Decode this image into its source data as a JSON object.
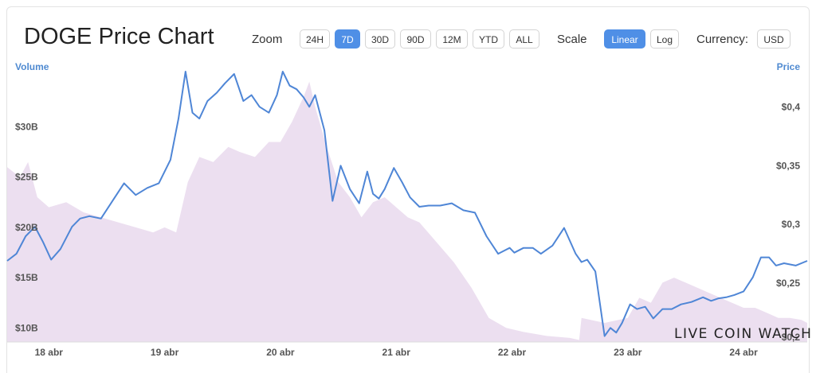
{
  "header": {
    "title": "DOGE Price Chart",
    "zoom_label": "Zoom",
    "zoom_options": [
      "24H",
      "7D",
      "30D",
      "90D",
      "12M",
      "YTD",
      "ALL"
    ],
    "zoom_selected": "7D",
    "scale_label": "Scale",
    "scale_options": [
      "Linear",
      "Log"
    ],
    "scale_selected": "Linear",
    "currency_label": "Currency:",
    "currency_value": "USD"
  },
  "watermark": "LIVE COIN WATCH",
  "colors": {
    "price_line": "#4f86d6",
    "volume_fill": "#ecdff0",
    "accent": "#4f8fe6"
  },
  "chart_data": {
    "type": "line",
    "title": "DOGE Price Chart",
    "x_ticks": [
      "18 abr",
      "19 abr",
      "20 abr",
      "21 abr",
      "22 abr",
      "23 abr",
      "24 abr"
    ],
    "x_range": [
      17.64,
      24.55
    ],
    "left_axis": {
      "title": "Volume",
      "ticks": [
        "$10B",
        "$15B",
        "$20B",
        "$25B",
        "$30B"
      ],
      "tick_values": [
        10,
        15,
        20,
        25,
        30
      ],
      "range": [
        8.6,
        35.5
      ]
    },
    "right_axis": {
      "title": "Price",
      "ticks": [
        "$0,2",
        "$0,25",
        "$0,3",
        "$0,35",
        "$0,4"
      ],
      "tick_values": [
        0.2,
        0.25,
        0.3,
        0.35,
        0.4
      ],
      "range": [
        0.2,
        0.43
      ]
    },
    "series": [
      {
        "name": "Price",
        "type": "line",
        "x": [
          17.64,
          17.72,
          17.8,
          17.88,
          17.95,
          18.02,
          18.1,
          18.2,
          18.27,
          18.35,
          18.45,
          18.55,
          18.65,
          18.75,
          18.85,
          18.95,
          19.05,
          19.12,
          19.18,
          19.24,
          19.3,
          19.37,
          19.45,
          19.52,
          19.6,
          19.68,
          19.75,
          19.82,
          19.9,
          19.97,
          20.02,
          20.08,
          20.14,
          20.2,
          20.25,
          20.3,
          20.38,
          20.45,
          20.52,
          20.6,
          20.68,
          20.75,
          20.8,
          20.85,
          20.9,
          20.98,
          21.05,
          21.12,
          21.2,
          21.28,
          21.38,
          21.48,
          21.58,
          21.68,
          21.78,
          21.88,
          21.98,
          22.02,
          22.1,
          22.18,
          22.25,
          22.35,
          22.45,
          22.55,
          22.6,
          22.65,
          22.72,
          22.8,
          22.85,
          22.9,
          22.95,
          23.02,
          23.08,
          23.15,
          23.22,
          23.3,
          23.38,
          23.46,
          23.55,
          23.65,
          23.72,
          23.78,
          23.85,
          23.92,
          24.0,
          24.08,
          24.15,
          24.22,
          24.28,
          24.35,
          24.45,
          24.55
        ],
        "values": [
          0.269,
          0.275,
          0.29,
          0.298,
          0.285,
          0.27,
          0.279,
          0.298,
          0.305,
          0.307,
          0.305,
          0.32,
          0.335,
          0.325,
          0.331,
          0.335,
          0.355,
          0.39,
          0.43,
          0.395,
          0.39,
          0.405,
          0.412,
          0.42,
          0.428,
          0.405,
          0.41,
          0.4,
          0.395,
          0.41,
          0.43,
          0.418,
          0.415,
          0.408,
          0.4,
          0.41,
          0.38,
          0.32,
          0.35,
          0.33,
          0.318,
          0.345,
          0.326,
          0.322,
          0.33,
          0.348,
          0.336,
          0.323,
          0.315,
          0.316,
          0.316,
          0.318,
          0.312,
          0.31,
          0.29,
          0.275,
          0.28,
          0.276,
          0.28,
          0.28,
          0.275,
          0.282,
          0.297,
          0.275,
          0.268,
          0.27,
          0.26,
          0.205,
          0.212,
          0.208,
          0.216,
          0.232,
          0.228,
          0.23,
          0.22,
          0.228,
          0.228,
          0.232,
          0.234,
          0.238,
          0.235,
          0.237,
          0.238,
          0.24,
          0.243,
          0.255,
          0.272,
          0.272,
          0.265,
          0.267,
          0.265,
          0.269
        ]
      },
      {
        "name": "Volume",
        "type": "area",
        "x": [
          17.64,
          17.75,
          17.82,
          17.9,
          18.0,
          18.15,
          18.3,
          18.45,
          18.6,
          18.75,
          18.9,
          19.0,
          19.1,
          19.2,
          19.3,
          19.42,
          19.55,
          19.65,
          19.78,
          19.9,
          20.0,
          20.1,
          20.2,
          20.25,
          20.3,
          20.4,
          20.5,
          20.6,
          20.7,
          20.8,
          20.9,
          21.0,
          21.1,
          21.2,
          21.35,
          21.5,
          21.65,
          21.8,
          21.95,
          22.1,
          22.3,
          22.5,
          22.58,
          22.6,
          22.8,
          23.0,
          23.1,
          23.2,
          23.3,
          23.4,
          23.5,
          23.6,
          23.7,
          23.8,
          23.9,
          24.0,
          24.1,
          24.2,
          24.3,
          24.4,
          24.5,
          24.55
        ],
        "values": [
          26.0,
          25.0,
          26.5,
          23.0,
          22.0,
          22.5,
          21.5,
          21.0,
          20.5,
          20.0,
          19.5,
          20.0,
          19.5,
          24.5,
          27.0,
          26.5,
          28.0,
          27.5,
          27.0,
          28.5,
          28.5,
          30.5,
          33.0,
          34.5,
          32.0,
          28.0,
          24.5,
          23.0,
          21.0,
          22.5,
          23.0,
          22.0,
          21.0,
          20.5,
          18.5,
          16.5,
          14.0,
          11.0,
          10.0,
          9.6,
          9.2,
          9.0,
          8.8,
          11.0,
          10.5,
          11.0,
          13.0,
          12.5,
          14.5,
          15.0,
          14.5,
          14.0,
          13.5,
          13.0,
          12.5,
          12.0,
          12.0,
          11.5,
          11.0,
          11.0,
          10.8,
          10.5
        ]
      }
    ]
  }
}
